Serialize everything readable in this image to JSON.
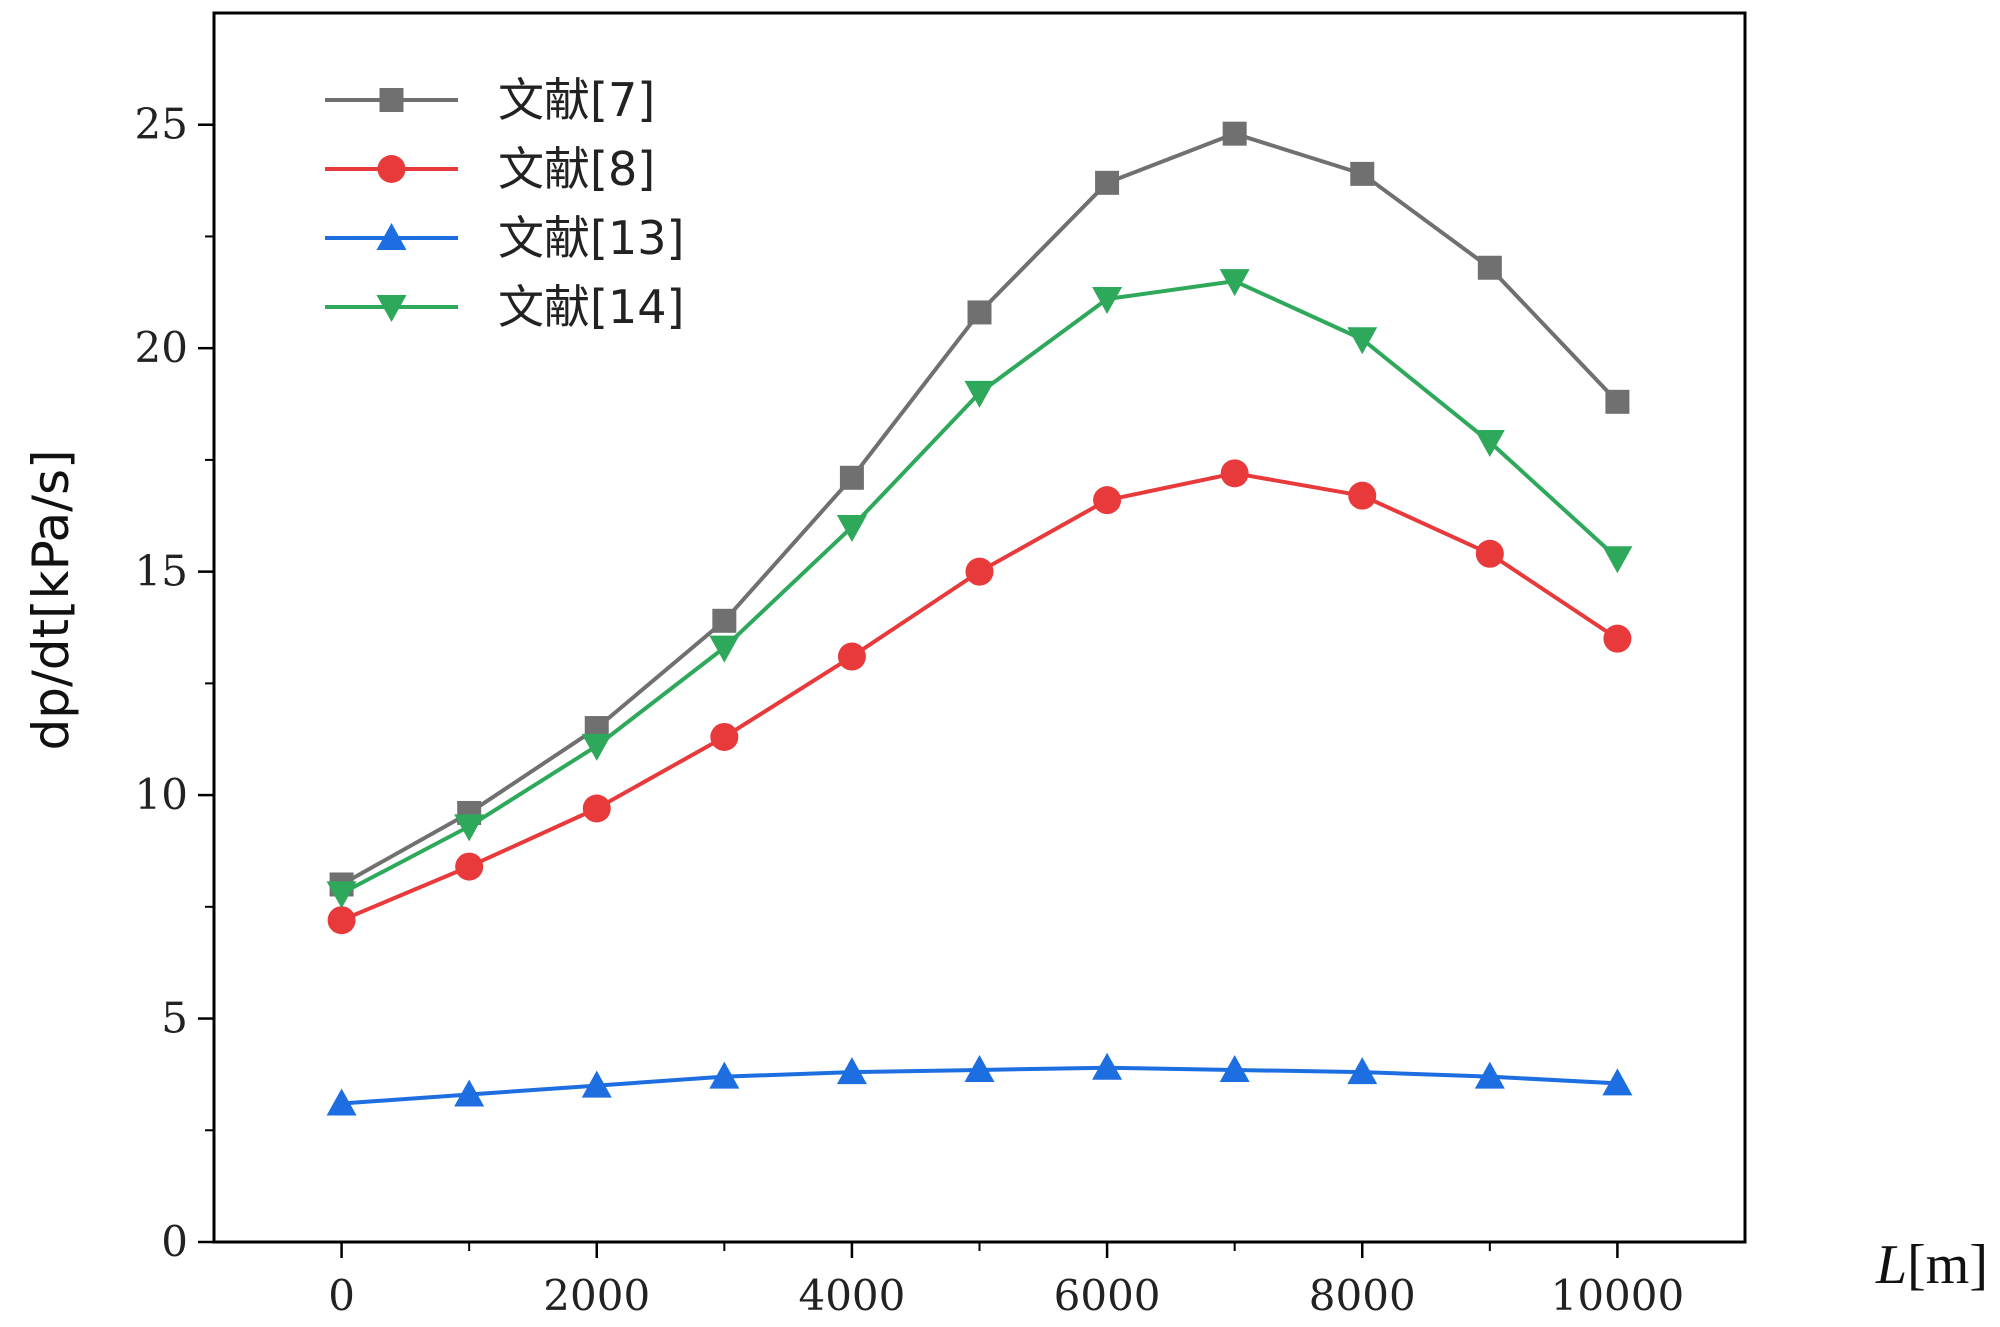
{
  "chart_data": {
    "type": "line",
    "xlabel": {
      "italic": "L",
      "rest": "[m]"
    },
    "ylabel": "dp/dt[kPa/s]",
    "x": [
      0,
      1000,
      2000,
      3000,
      4000,
      5000,
      6000,
      7000,
      8000,
      9000,
      10000
    ],
    "xlim": [
      -1000,
      11000
    ],
    "ylim": [
      0,
      27.5
    ],
    "xticks": [
      0,
      2000,
      4000,
      6000,
      8000,
      10000
    ],
    "xminor": [
      1000,
      3000,
      5000,
      7000,
      9000
    ],
    "yticks": [
      0,
      5,
      10,
      15,
      20,
      25
    ],
    "yminor": [
      2.5,
      7.5,
      12.5,
      17.5,
      22.5
    ],
    "legend_position": "top-left",
    "grid": false,
    "series": [
      {
        "name": "文献[7]",
        "color": "#707070",
        "marker": "square",
        "values": [
          8.0,
          9.6,
          11.5,
          13.9,
          17.1,
          20.8,
          23.7,
          24.8,
          23.9,
          21.8,
          18.8
        ]
      },
      {
        "name": "文献[8]",
        "color": "#e8393b",
        "marker": "circle",
        "values": [
          7.2,
          8.4,
          9.7,
          11.3,
          13.1,
          15.0,
          16.6,
          17.2,
          16.7,
          15.4,
          13.5
        ]
      },
      {
        "name": "文献[13]",
        "color": "#1d6ee0",
        "marker": "triangle-up",
        "values": [
          3.1,
          3.3,
          3.5,
          3.7,
          3.8,
          3.85,
          3.9,
          3.85,
          3.8,
          3.7,
          3.55
        ]
      },
      {
        "name": "文献[14]",
        "color": "#2ea85a",
        "marker": "triangle-down",
        "values": [
          7.8,
          9.3,
          11.1,
          13.3,
          16.0,
          19.0,
          21.1,
          21.5,
          20.2,
          17.9,
          15.3
        ]
      }
    ]
  }
}
